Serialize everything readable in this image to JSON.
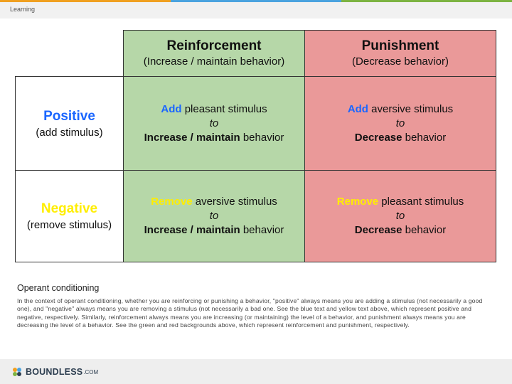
{
  "header": {
    "breadcrumb": "Learning"
  },
  "table": {
    "col_headers": [
      {
        "title": "Reinforcement",
        "subtitle": "(Increase / maintain behavior)"
      },
      {
        "title": "Punishment",
        "subtitle": "(Decrease behavior)"
      }
    ],
    "rows": [
      {
        "title": "Positive",
        "subtitle": "(add stimulus)",
        "cells": [
          {
            "verb": "Add",
            "rest": " pleasant stimulus",
            "to": "to",
            "effect_bold": "Increase / maintain",
            "effect_tail": " behavior"
          },
          {
            "verb": "Add",
            "rest": " aversive stimulus",
            "to": "to",
            "effect_bold": "Decrease",
            "effect_tail": " behavior"
          }
        ]
      },
      {
        "title": "Negative",
        "subtitle": "(remove stimulus)",
        "cells": [
          {
            "verb": "Remove",
            "rest": " aversive stimulus",
            "to": "to",
            "effect_bold": "Increase / maintain",
            "effect_tail": " behavior"
          },
          {
            "verb": "Remove",
            "rest": " pleasant stimulus",
            "to": "to",
            "effect_bold": "Decrease",
            "effect_tail": " behavior"
          }
        ]
      }
    ]
  },
  "caption": {
    "title": "Operant conditioning",
    "text": "In the context of operant conditioning, whether you are reinforcing or punishing a behavior, \"positive\" always means you are adding a stimulus (not necessarily a good one), and \"negative\" always means you are removing a stimulus (not necessarily a bad one. See the blue text and yellow text above, which represent positive and negative, respectively. Similarly, reinforcement always means you are increasing (or maintaining) the level of a behavior, and punishment always means you are decreasing the level of a behavior. See the green and red backgrounds above, which represent reinforcement and punishment, respectively."
  },
  "footer": {
    "logo_text": "BOUNDLESS",
    "logo_suffix": ".COM",
    "logo_icon": "boundless-logo-icon"
  },
  "colors": {
    "reinforcement_bg": "#b6d7a8",
    "punishment_bg": "#ea9999",
    "positive_text": "#1a66ff",
    "negative_text": "#ffee00"
  }
}
